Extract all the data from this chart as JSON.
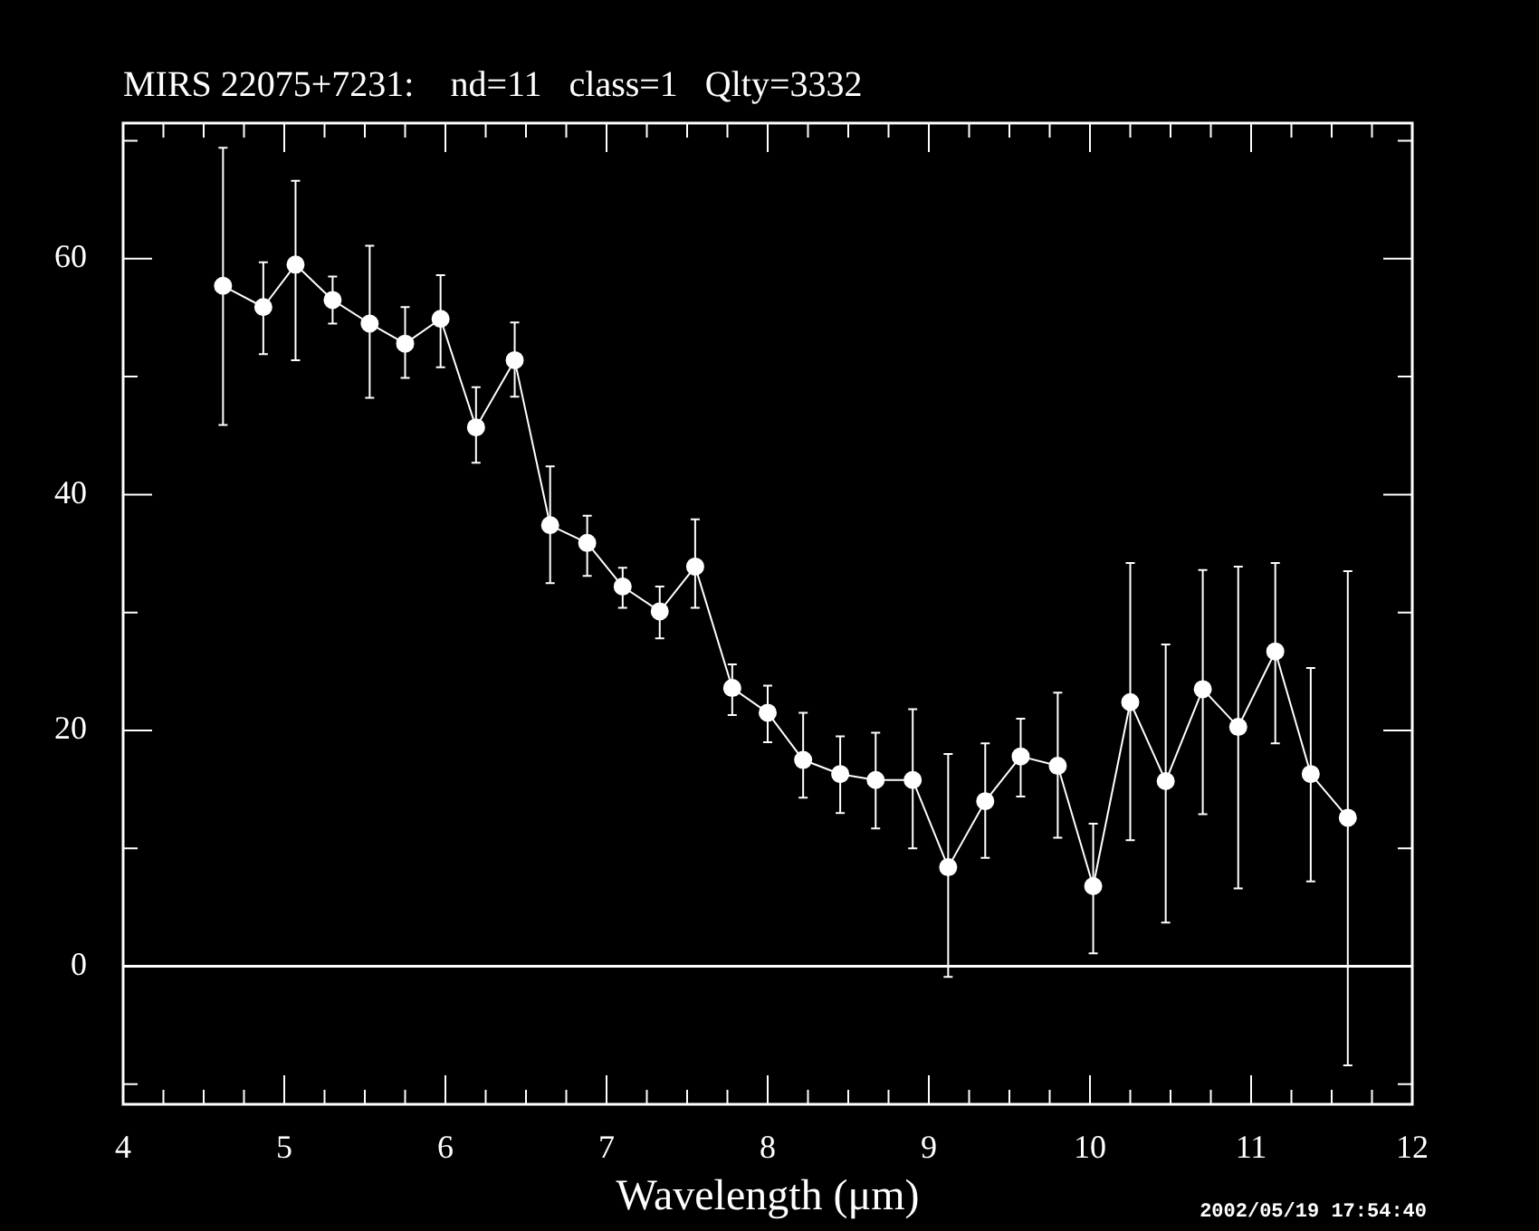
{
  "chart_data": {
    "type": "line",
    "title": "MIRS 22075+7231:    nd=11   class=1   Qlty=3332",
    "xlabel": "Wavelength (μm)",
    "x": [
      4.62,
      4.87,
      5.07,
      5.3,
      5.53,
      5.75,
      5.97,
      6.19,
      6.43,
      6.65,
      6.88,
      7.1,
      7.33,
      7.55,
      7.78,
      8.0,
      8.22,
      8.45,
      8.67,
      8.9,
      9.12,
      9.35,
      9.57,
      9.8,
      10.02,
      10.25,
      10.47,
      10.7,
      10.92,
      11.15,
      11.37,
      11.6
    ],
    "series": [
      {
        "color": "#ffffff",
        "values": [
          57.7,
          55.9,
          59.5,
          56.5,
          54.5,
          52.8,
          54.9,
          45.7,
          51.4,
          37.4,
          35.9,
          32.2,
          30.1,
          33.9,
          23.6,
          21.5,
          17.5,
          16.3,
          15.8,
          15.8,
          8.4,
          14.0,
          17.8,
          17.0,
          6.8,
          22.4,
          15.7,
          23.5,
          20.3,
          26.7,
          16.3,
          12.6
        ],
        "errors": [
          [
            45.9,
            69.4
          ],
          [
            51.9,
            59.7
          ],
          [
            51.4,
            66.6
          ],
          [
            54.5,
            58.5
          ],
          [
            48.2,
            61.1
          ],
          [
            49.9,
            55.9
          ],
          [
            50.8,
            58.6
          ],
          [
            42.7,
            49.1
          ],
          [
            48.3,
            54.6
          ],
          [
            32.5,
            42.4
          ],
          [
            33.1,
            38.2
          ],
          [
            30.4,
            33.8
          ],
          [
            27.8,
            32.2
          ],
          [
            30.4,
            37.9
          ],
          [
            21.3,
            25.6
          ],
          [
            19.0,
            23.8
          ],
          [
            14.3,
            21.5
          ],
          [
            13.0,
            19.5
          ],
          [
            11.7,
            19.8
          ],
          [
            10.0,
            21.8
          ],
          [
            -0.9,
            18.0
          ],
          [
            9.2,
            18.9
          ],
          [
            14.4,
            21.0
          ],
          [
            10.9,
            23.2
          ],
          [
            1.1,
            12.1
          ],
          [
            10.7,
            34.2
          ],
          [
            3.7,
            27.3
          ],
          [
            12.9,
            33.6
          ],
          [
            6.6,
            33.9
          ],
          [
            18.9,
            34.2
          ],
          [
            7.2,
            25.3
          ],
          [
            -8.4,
            33.5
          ]
        ]
      }
    ],
    "marker": "circle",
    "line_style": "solid",
    "xlim": [
      4,
      12
    ],
    "xticks": [
      4,
      {
        "value": 4.25,
        "label": null
      },
      {
        "value": 4.5,
        "label": null
      },
      {
        "value": 4.75,
        "label": null
      },
      5,
      {
        "value": 5.25,
        "label": null
      },
      {
        "value": 5.5,
        "label": null
      },
      {
        "value": 5.75,
        "label": null
      },
      6,
      {
        "value": 6.25,
        "label": null
      },
      {
        "value": 6.5,
        "label": null
      },
      {
        "value": 6.75,
        "label": null
      },
      7,
      {
        "value": 7.25,
        "label": null
      },
      {
        "value": 7.5,
        "label": null
      },
      {
        "value": 7.75,
        "label": null
      },
      8,
      {
        "value": 8.25,
        "label": null
      },
      {
        "value": 8.5,
        "label": null
      },
      {
        "value": 8.75,
        "label": null
      },
      9,
      {
        "value": 9.25,
        "label": null
      },
      {
        "value": 9.5,
        "label": null
      },
      {
        "value": 9.75,
        "label": null
      },
      10,
      {
        "value": 10.25,
        "label": null
      },
      {
        "value": 10.5,
        "label": null
      },
      {
        "value": 10.75,
        "label": null
      },
      11,
      {
        "value": 11.25,
        "label": null
      },
      {
        "value": 11.5,
        "label": null
      },
      {
        "value": 11.75,
        "label": null
      },
      12
    ],
    "ylim": [
      -11.7,
      71.5
    ],
    "yticks": [
      {
        "value": -10,
        "label": null
      },
      0,
      {
        "value": 10,
        "label": null
      },
      20,
      {
        "value": 30,
        "label": null
      },
      40,
      {
        "value": 50,
        "label": null
      },
      60,
      {
        "value": 70,
        "label": null
      }
    ],
    "ref_lines": [
      {
        "axis": "y",
        "value": 0,
        "color": "#ffffff",
        "line_style": "solid"
      }
    ],
    "grid": false,
    "legend": false,
    "annotations": [
      "2002/05/19 17:54:40"
    ]
  }
}
